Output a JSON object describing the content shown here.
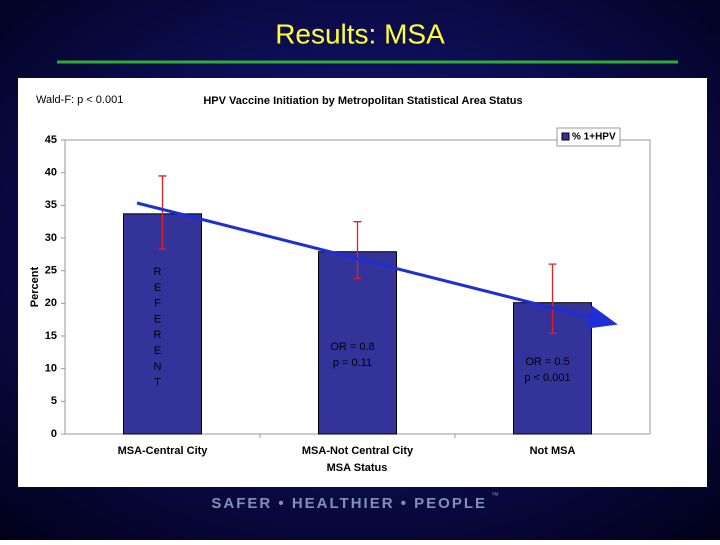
{
  "title": "Results: MSA",
  "footer": {
    "text": "SAFER • HEALTHIER • PEOPLE",
    "mark": "™"
  },
  "chart_data": {
    "type": "bar",
    "title": "HPV Vaccine Initiation by Metropolitan Statistical Area Status",
    "subtitle": "Wald-F: p < 0.001",
    "categories": [
      "MSA-Central City",
      "MSA-Not Central City",
      "Not MSA"
    ],
    "series": [
      {
        "name": "% 1+HPV",
        "color": "#333399",
        "values": [
          33.7,
          27.9,
          20.1
        ],
        "error_high": [
          39.5,
          32.5,
          26
        ],
        "error_low": [
          28.3,
          23.8,
          15.4
        ]
      }
    ],
    "ylim": [
      0,
      45
    ],
    "yticks": [
      0,
      5,
      10,
      15,
      20,
      25,
      30,
      35,
      40,
      45
    ],
    "ylabel": "Percent",
    "xlabel": "MSA Status",
    "legend": "upper right",
    "grid": false,
    "annotations": [
      [
        "REFERENT"
      ],
      [
        "OR = 0.8",
        "p = 0.11"
      ],
      [
        "OR = 0.5",
        "p < 0.001"
      ]
    ]
  }
}
